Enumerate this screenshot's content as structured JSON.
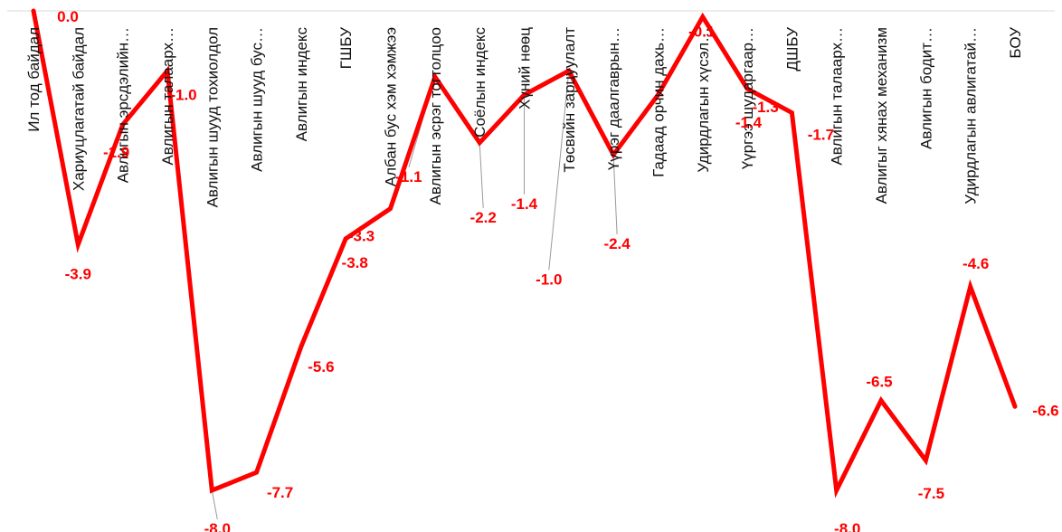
{
  "chart_data": {
    "type": "line",
    "title": "",
    "xlabel": "",
    "ylabel": "",
    "ylim": [
      -8.3,
      0.1
    ],
    "grid": false,
    "legend": "none",
    "line_color": "#ff0000",
    "categories": [
      "Ил тод байдал",
      "Хариуцлагатай байдал",
      "Авлигын эрсдэлийн…",
      "Авлигын талаарх…",
      "Авлигын шууд тохиолдол",
      "Авлигын шууд бус…",
      "Авлигын индекс",
      "ГШБУ",
      "Албан бус хэм хэмжээ",
      "Авлигын эсрэг тогтолцоо",
      "Соёлын индекс",
      "Хүний нөөц",
      "Төсвийн зарцуулалт",
      "Үүрэг даалгаврын…",
      "Гадаад орчин дахь…",
      "Удирдлагын хүсэл…",
      "Үүргээ шударгаар…",
      "ДШБУ",
      "Авлигын талаарх…",
      "Авлигыг хянах механизм",
      "Авлигын бодит…",
      "Удирдлагын авлигатай…",
      "БОУ"
    ],
    "values": [
      0.0,
      -3.9,
      -1.9,
      -1.0,
      -8.0,
      -7.7,
      -5.6,
      -3.8,
      -3.3,
      -1.1,
      -2.2,
      -1.4,
      -1.0,
      -2.4,
      -1.4,
      -0.1,
      -1.3,
      -1.7,
      -8.0,
      -6.5,
      -7.5,
      -4.6,
      -6.6
    ],
    "labels": [
      "0.0",
      "-3.9",
      "-1.9",
      "-1.0",
      "-8.0",
      "-7.7",
      "-5.6",
      "-3.8",
      "-3.3",
      "-1.1",
      "-2.2",
      "-1.4",
      "-1.0",
      "-2.4",
      "-1.4",
      "-0.1",
      "-1.3",
      "-1.7",
      "-8.0",
      "-6.5",
      "-7.5",
      "-4.6",
      "-6.6"
    ]
  }
}
